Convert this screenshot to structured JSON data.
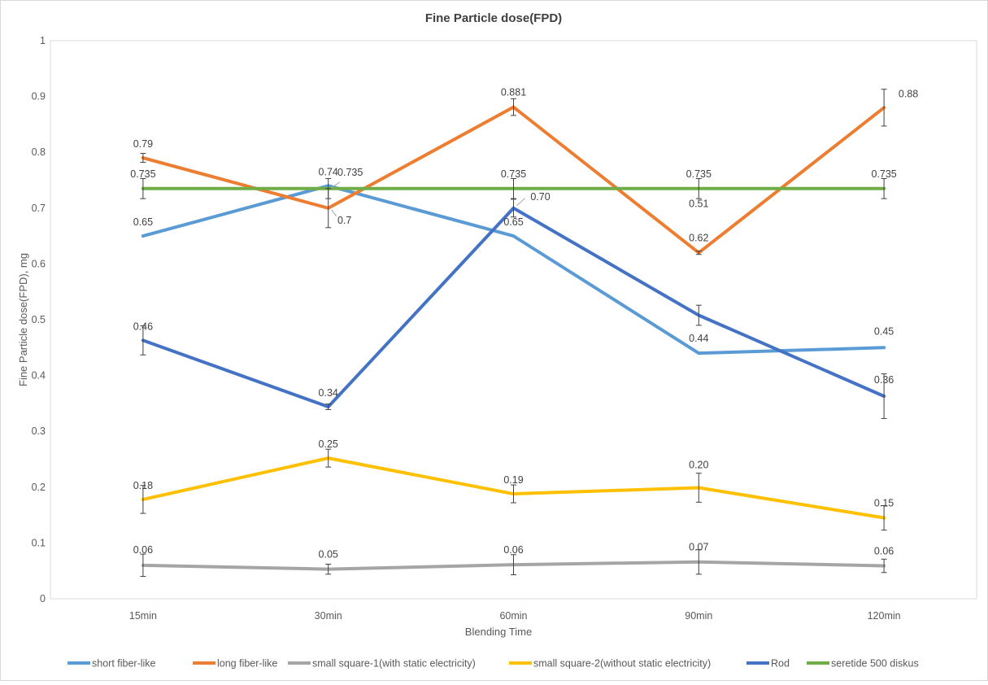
{
  "chart_data": {
    "type": "line",
    "title": "Fine Particle dose(FPD)",
    "xlabel": "Blending Time",
    "ylabel": "Fine Particle dose(FPD), mg",
    "categories": [
      "15min",
      "30min",
      "60min",
      "90min",
      "120min"
    ],
    "ylim": [
      0,
      1
    ],
    "yticks": [
      "0",
      "0.1",
      "0.2",
      "0.3",
      "0.4",
      "0.5",
      "0.6",
      "0.7",
      "0.8",
      "0.9",
      "1"
    ],
    "grid": false,
    "legend_position": "bottom",
    "series": [
      {
        "name": "short fiber-like",
        "color": "#5B9BD5",
        "values": [
          0.65,
          0.74,
          0.65,
          0.44,
          0.45
        ],
        "labels": [
          "0.65",
          "0.74",
          "0.65",
          "0.44",
          "0.45"
        ]
      },
      {
        "name": "long fiber-like",
        "color": "#ED7D31",
        "values": [
          0.79,
          0.7,
          0.881,
          0.62,
          0.88
        ],
        "errors": [
          0.008,
          0.035,
          0.015,
          0.003,
          0.033
        ],
        "labels": [
          "0.79",
          "0.7",
          "0.881",
          "0.62",
          "0.88"
        ]
      },
      {
        "name": "small square-1(with static electricity)",
        "color": "#A5A5A5",
        "values": [
          0.06,
          0.053,
          0.061,
          0.066,
          0.059
        ],
        "errors": [
          0.02,
          0.009,
          0.018,
          0.022,
          0.012
        ],
        "labels": [
          "0.06",
          "0.05",
          "0.06",
          "0.07",
          "0.06"
        ]
      },
      {
        "name": "small square-2(without static electricity)",
        "color": "#FFC000",
        "values": [
          0.178,
          0.252,
          0.188,
          0.199,
          0.145
        ],
        "errors": [
          0.025,
          0.016,
          0.016,
          0.026,
          0.022
        ],
        "labels": [
          "0.18",
          "0.25",
          "0.19",
          "0.20",
          "0.15"
        ]
      },
      {
        "name": "Rod",
        "color": "#4472C4",
        "values": [
          0.463,
          0.344,
          0.7,
          0.508,
          0.363
        ],
        "errors": [
          0.026,
          0.005,
          0.016,
          0.018,
          0.04
        ],
        "labels": [
          "0.46",
          "0.34",
          "0.70",
          "0.51",
          "0.36"
        ]
      },
      {
        "name": "seretide 500 diskus",
        "color": "#70AD47",
        "values": [
          0.735,
          0.735,
          0.735,
          0.735,
          0.735
        ],
        "errors": [
          0.018,
          0.018,
          0.018,
          0.018,
          0.018
        ],
        "labels": [
          "0.735",
          "0.735",
          "0.735",
          "0.735",
          "0.735"
        ]
      }
    ]
  }
}
